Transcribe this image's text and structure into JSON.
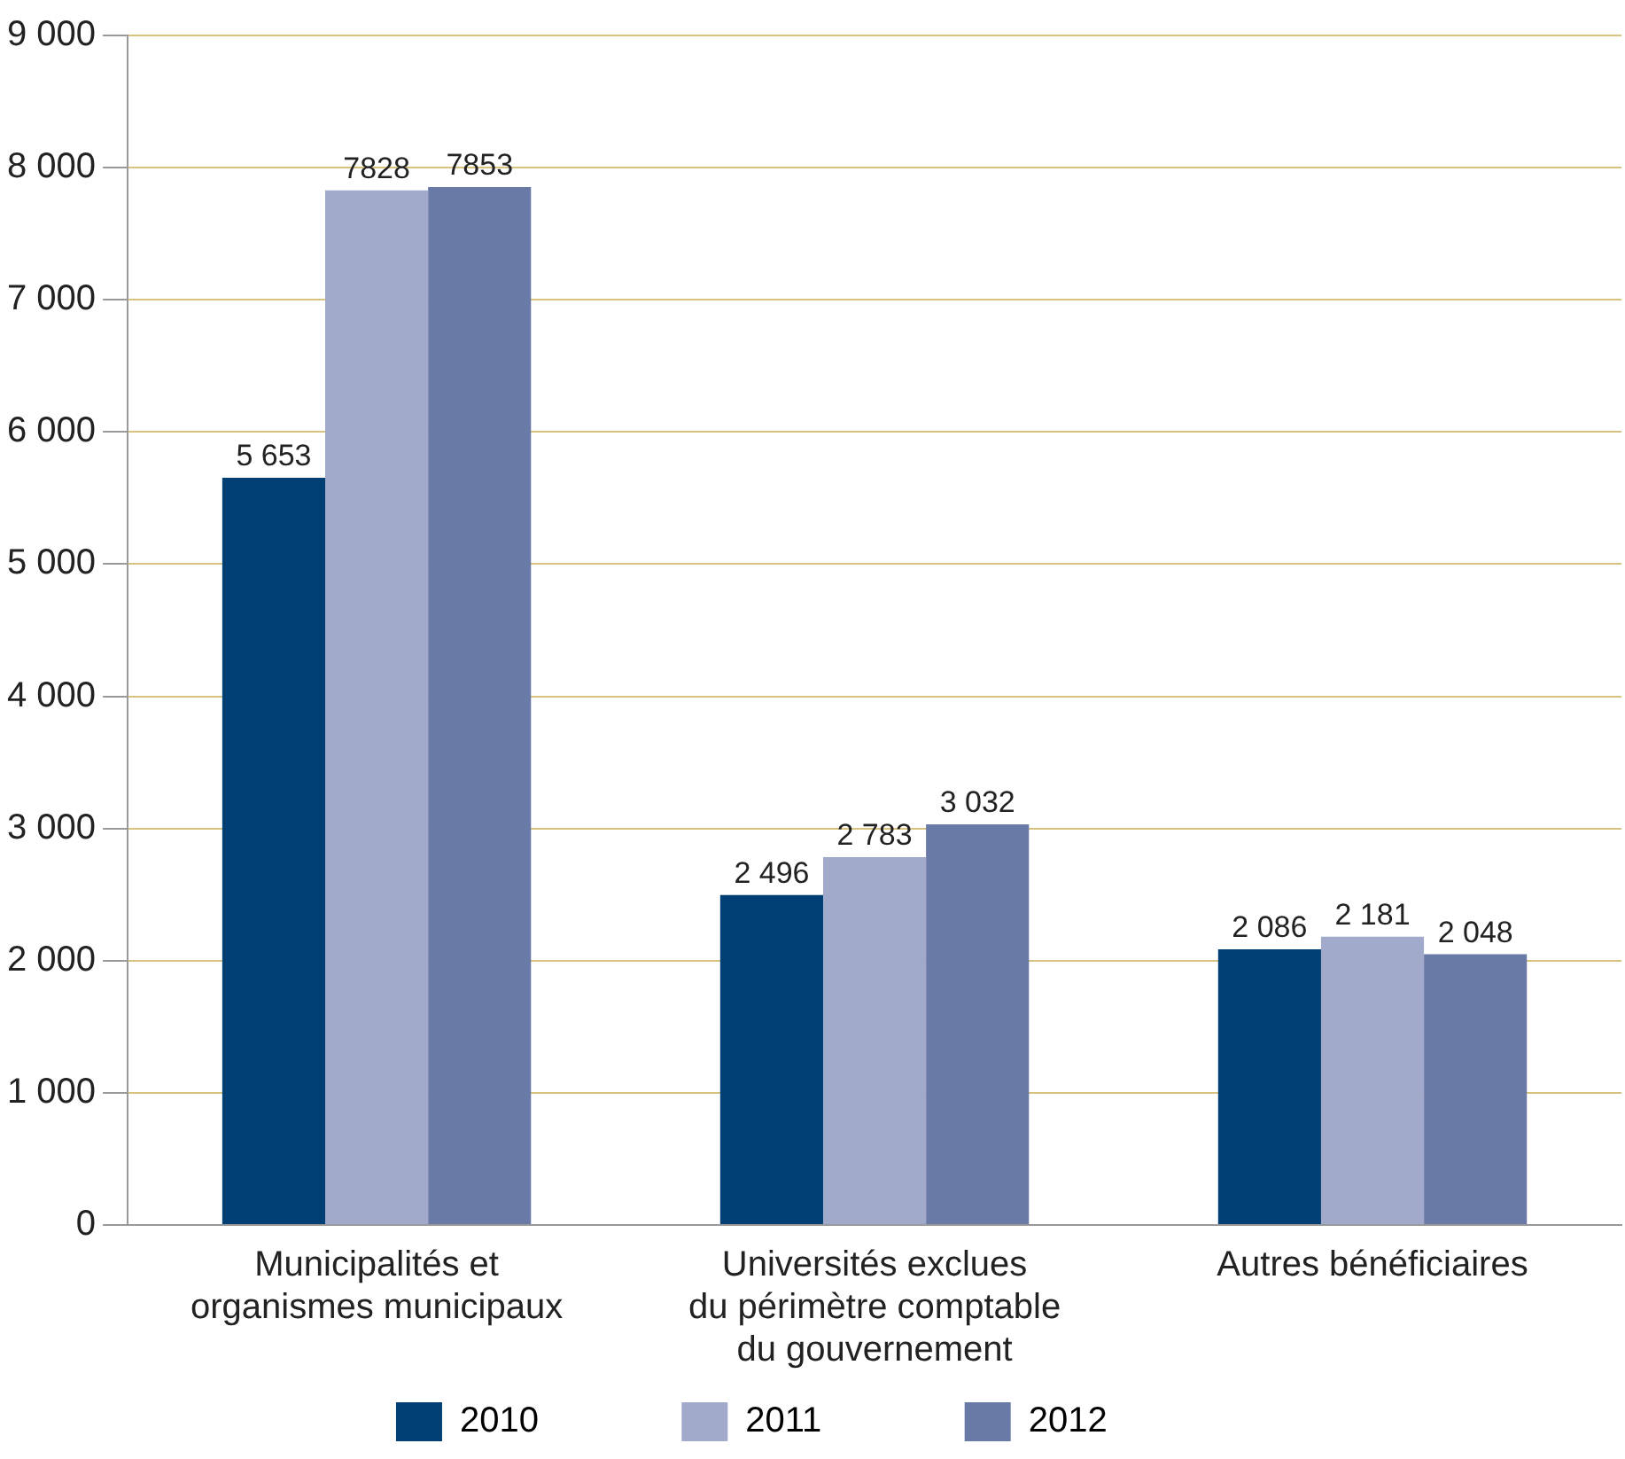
{
  "chart_data": {
    "type": "bar",
    "categories": [
      "Municipalités et\norganismes municipaux",
      "Universités exclues\ndu périmètre comptable\ndu gouvernement",
      "Autres bénéficiaires"
    ],
    "series": [
      {
        "name": "2010",
        "color": "#003f74",
        "values": [
          5653,
          2496,
          2086
        ],
        "value_labels": [
          "5 653",
          "2 496",
          "2 086"
        ]
      },
      {
        "name": "2011",
        "color": "#a2aacb",
        "values": [
          7828,
          2783,
          2181
        ],
        "value_labels": [
          "7828",
          "2 783",
          "2 181"
        ]
      },
      {
        "name": "2012",
        "color": "#6a7aa6",
        "values": [
          7853,
          3032,
          2048
        ],
        "value_labels": [
          "7853",
          "3 032",
          "2 048"
        ]
      }
    ],
    "ylim": [
      0,
      9000
    ],
    "yticks": [
      {
        "value": 0,
        "label": "0"
      },
      {
        "value": 1000,
        "label": "1 000"
      },
      {
        "value": 2000,
        "label": "2 000"
      },
      {
        "value": 3000,
        "label": "3 000"
      },
      {
        "value": 4000,
        "label": "4 000"
      },
      {
        "value": 5000,
        "label": "5 000"
      },
      {
        "value": 6000,
        "label": "6 000"
      },
      {
        "value": 7000,
        "label": "7 000"
      },
      {
        "value": 8000,
        "label": "8 000"
      },
      {
        "value": 9000,
        "label": "9 000"
      }
    ],
    "grid": "y",
    "legend": "bottom"
  }
}
